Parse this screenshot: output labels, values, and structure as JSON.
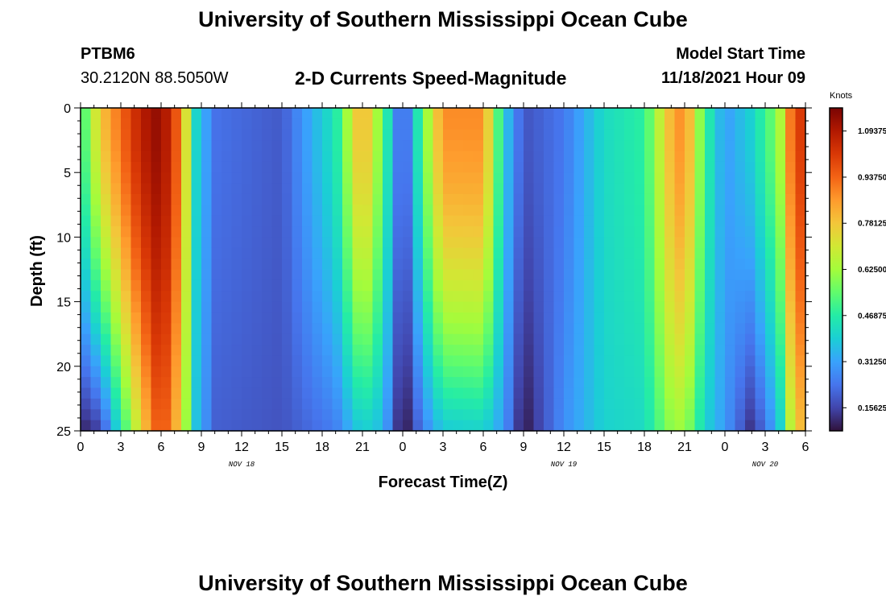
{
  "page": {
    "title": "University of Southern Mississippi Ocean Cube",
    "station": "PTBM6",
    "coords": "30.2120N  88.5050W",
    "subtitle": "2-D Currents Speed-Magnitude",
    "start_label": "Model Start Time",
    "start_time": "11/18/2021 Hour 09",
    "second_title": "University of Southern Mississippi Ocean Cube"
  },
  "chart_data": {
    "type": "heatmap",
    "xlabel": "Forecast Time(Z)",
    "ylabel": "Depth (ft)",
    "x_ticks": [
      "0",
      "3",
      "6",
      "9",
      "12",
      "15",
      "18",
      "21",
      "0",
      "3",
      "6",
      "9",
      "12",
      "15",
      "18",
      "21",
      "0",
      "3",
      "6"
    ],
    "y_ticks": [
      "0",
      "5",
      "10",
      "15",
      "20",
      "25"
    ],
    "y_range": [
      0,
      25
    ],
    "date_labels": [
      {
        "text": "NOV 18",
        "at_hour": 12
      },
      {
        "text": "NOV 19",
        "at_hour": 36
      },
      {
        "text": "NOV 20",
        "at_hour": 51
      }
    ],
    "colorbar": {
      "unit": "Knots",
      "range": [
        0.078,
        1.172
      ],
      "ticks": [
        "1.09375",
        "0.93750",
        "0.78125",
        "0.62500",
        "0.46875",
        "0.31250",
        "0.15625"
      ],
      "colors": [
        "#30123b",
        "#4145ab",
        "#4675ed",
        "#39a2fc",
        "#1bcfd4",
        "#24eca6",
        "#61fc6c",
        "#a4fc3b",
        "#d1e834",
        "#f3c63a",
        "#fe9b2d",
        "#f36315",
        "#d93806",
        "#b11901",
        "#7a0403"
      ]
    },
    "speed_profile": [
      {
        "hour": 0,
        "surface": 0.47,
        "bottom": 0.1
      },
      {
        "hour": 1.5,
        "surface": 0.78,
        "bottom": 0.15
      },
      {
        "hour": 4.5,
        "surface": 1.08,
        "bottom": 0.75
      },
      {
        "hour": 6,
        "surface": 1.15,
        "bottom": 1.0
      },
      {
        "hour": 7.5,
        "surface": 0.9,
        "bottom": 0.75
      },
      {
        "hour": 8.5,
        "surface": 0.42,
        "bottom": 0.38
      },
      {
        "hour": 10,
        "surface": 0.23,
        "bottom": 0.2
      },
      {
        "hour": 15,
        "surface": 0.19,
        "bottom": 0.18
      },
      {
        "hour": 19,
        "surface": 0.45,
        "bottom": 0.25
      },
      {
        "hour": 21,
        "surface": 0.85,
        "bottom": 0.4
      },
      {
        "hour": 22.5,
        "surface": 0.55,
        "bottom": 0.35
      },
      {
        "hour": 24,
        "surface": 0.15,
        "bottom": 0.06
      },
      {
        "hour": 25.5,
        "surface": 0.55,
        "bottom": 0.25
      },
      {
        "hour": 27,
        "surface": 0.88,
        "bottom": 0.38
      },
      {
        "hour": 30,
        "surface": 0.88,
        "bottom": 0.4
      },
      {
        "hour": 31.5,
        "surface": 0.4,
        "bottom": 0.3
      },
      {
        "hour": 33,
        "surface": 0.18,
        "bottom": 0.08
      },
      {
        "hour": 36,
        "surface": 0.24,
        "bottom": 0.28
      },
      {
        "hour": 39,
        "surface": 0.42,
        "bottom": 0.4
      },
      {
        "hour": 42,
        "surface": 0.48,
        "bottom": 0.42
      },
      {
        "hour": 44,
        "surface": 0.82,
        "bottom": 0.6
      },
      {
        "hour": 45,
        "surface": 0.9,
        "bottom": 0.62
      },
      {
        "hour": 46.5,
        "surface": 0.5,
        "bottom": 0.4
      },
      {
        "hour": 48,
        "surface": 0.3,
        "bottom": 0.3
      },
      {
        "hour": 50,
        "surface": 0.4,
        "bottom": 0.12
      },
      {
        "hour": 52,
        "surface": 0.6,
        "bottom": 0.35
      },
      {
        "hour": 53,
        "surface": 0.95,
        "bottom": 0.7
      },
      {
        "hour": 54,
        "surface": 1.05,
        "bottom": 0.85
      }
    ]
  }
}
